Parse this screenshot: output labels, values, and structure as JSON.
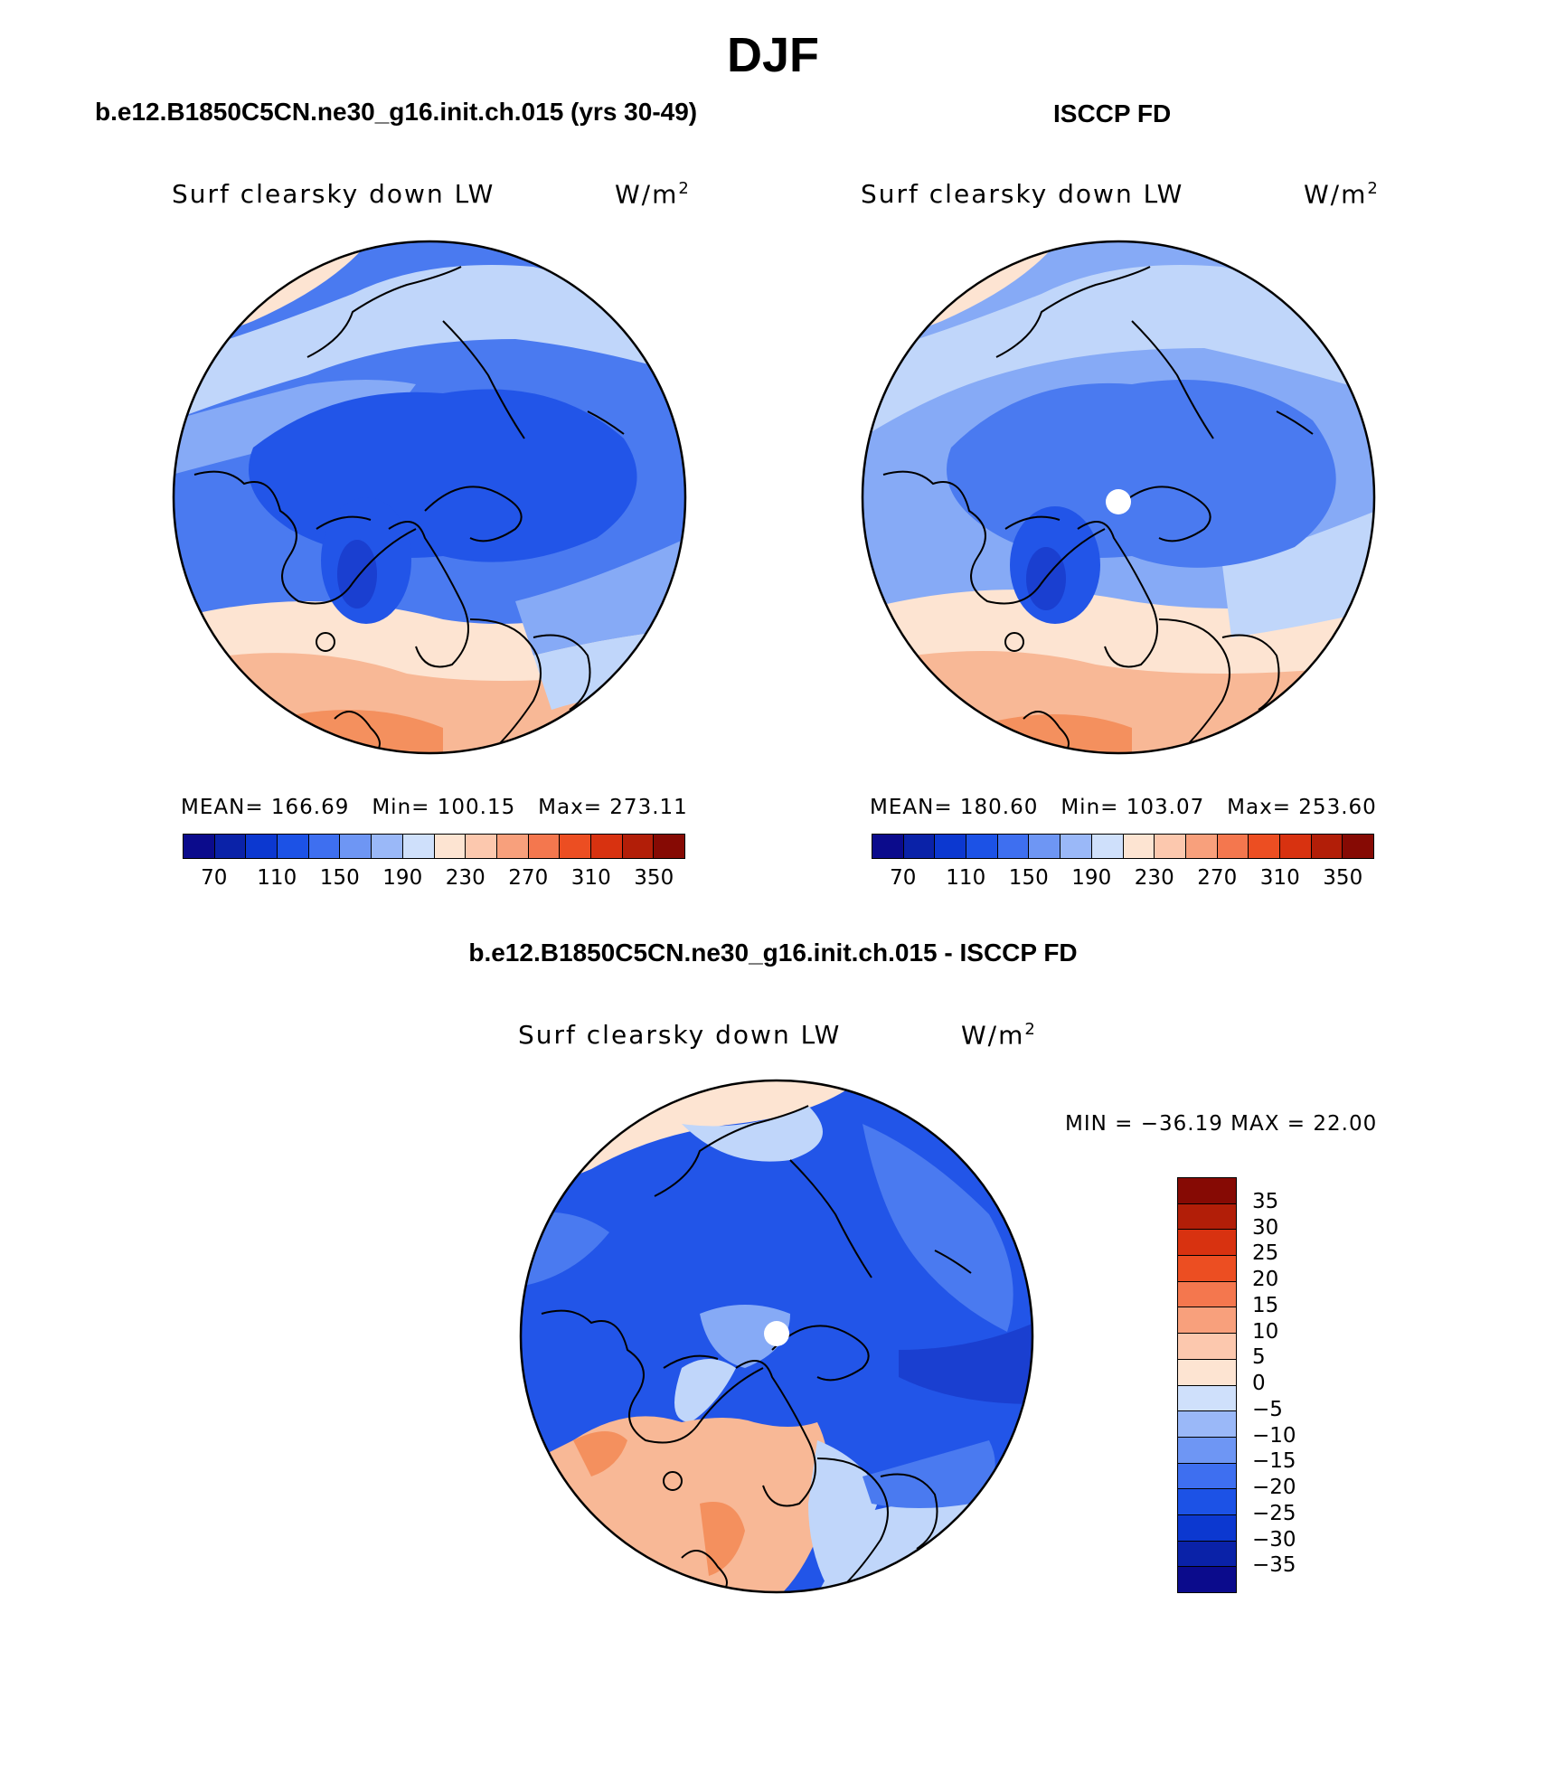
{
  "figure": {
    "title": "DJF"
  },
  "panels": [
    {
      "id": "model",
      "title": "b.e12.B1850C5CN.ne30_g16.init.ch.015 (yrs 30-49)",
      "variable": "Surf clearsky down LW",
      "units_base": "W/m",
      "units_exp": "2",
      "stats": {
        "mean_label": "MEAN=",
        "mean": "166.69",
        "min_label": "Min=",
        "min": "100.15",
        "max_label": "Max=",
        "max": "273.11"
      }
    },
    {
      "id": "obs",
      "title": "ISCCP FD",
      "variable": "Surf clearsky down LW",
      "units_base": "W/m",
      "units_exp": "2",
      "stats": {
        "mean_label": "MEAN=",
        "mean": "180.60",
        "min_label": "Min=",
        "min": "103.07",
        "max_label": "Max=",
        "max": "253.60"
      }
    },
    {
      "id": "diff",
      "title": "b.e12.B1850C5CN.ne30_g16.init.ch.015 - ISCCP FD",
      "variable": "Surf clearsky down LW",
      "units_base": "W/m",
      "units_exp": "2",
      "minmax": "MIN = −36.19 MAX =  22.00"
    }
  ],
  "colorbar_abs": {
    "colors": [
      "#0b0b8c",
      "#0a22a8",
      "#0c38d0",
      "#1c52e6",
      "#3e6ff0",
      "#6e96f4",
      "#9ab8f8",
      "#cfe0fb",
      "#fde4d2",
      "#fcc8ae",
      "#f8a07c",
      "#f4774e",
      "#ec4e22",
      "#d83210",
      "#b21e08",
      "#860a04"
    ],
    "ticks": [
      "70",
      "110",
      "150",
      "190",
      "230",
      "270",
      "310",
      "350"
    ]
  },
  "colorbar_diff": {
    "colors": [
      "#860a04",
      "#b21e08",
      "#d83210",
      "#ec4e22",
      "#f4774e",
      "#f8a07c",
      "#fcc8ae",
      "#fde4d2",
      "#cfe0fb",
      "#9ab8f8",
      "#6e96f4",
      "#3e6ff0",
      "#1c52e6",
      "#0c38d0",
      "#0a22a8",
      "#0b0b8c"
    ],
    "labels": [
      "35",
      "30",
      "25",
      "20",
      "15",
      "10",
      "5",
      "0",
      "−5",
      "−10",
      "−15",
      "−20",
      "−25",
      "−30",
      "−35"
    ]
  },
  "map_colors": {
    "land_line": "#000000",
    "blue_deep": "#2255e8",
    "blue_mid": "#4a7af0",
    "blue_light": "#86aaf6",
    "blue_pale": "#c0d6fa",
    "orange_pale": "#fde4d2",
    "orange_light": "#f8b896",
    "orange_mid": "#f4905e"
  }
}
